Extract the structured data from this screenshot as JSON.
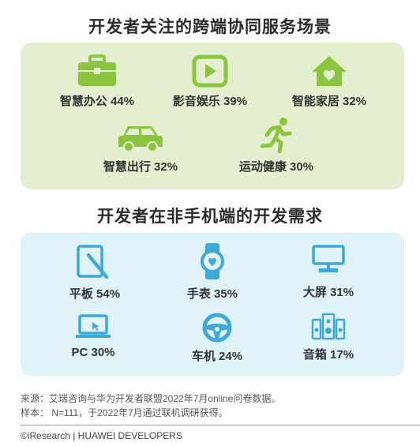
{
  "section1": {
    "title": "开发者关注的跨端协同服务场景",
    "items": [
      {
        "label": "智慧办公 44%",
        "icon": "briefcase-icon"
      },
      {
        "label": "影音娱乐 39%",
        "icon": "play-icon"
      },
      {
        "label": "智能家居 32%",
        "icon": "home-icon"
      },
      {
        "label": "智慧出行 32%",
        "icon": "car-icon"
      },
      {
        "label": "运动健康 30%",
        "icon": "runner-icon"
      }
    ]
  },
  "section2": {
    "title": "开发者在非手机端的开发需求",
    "items": [
      {
        "label": "平板 54%",
        "icon": "tablet-icon"
      },
      {
        "label": "手表 35%",
        "icon": "watch-icon"
      },
      {
        "label": "大屏 31%",
        "icon": "tv-icon"
      },
      {
        "label": "PC 30%",
        "icon": "laptop-icon"
      },
      {
        "label": "车机 24%",
        "icon": "steering-wheel-icon"
      },
      {
        "label": "音箱 17%",
        "icon": "speaker-icon"
      }
    ]
  },
  "notes": {
    "source": "来源：艾瑞咨询与华为开发者联盟2022年7月online问卷数据。",
    "sample": "样本：  N=111，于2022年7月通过联机调研获得。"
  },
  "footer": "©iResearch | HUAWEI DEVELOPERS",
  "colors": {
    "green_icon": "#8bc53f",
    "blue_icon": "#3fa9d6",
    "green_panel": "#e3efcf",
    "blue_panel": "#dff3f8"
  }
}
